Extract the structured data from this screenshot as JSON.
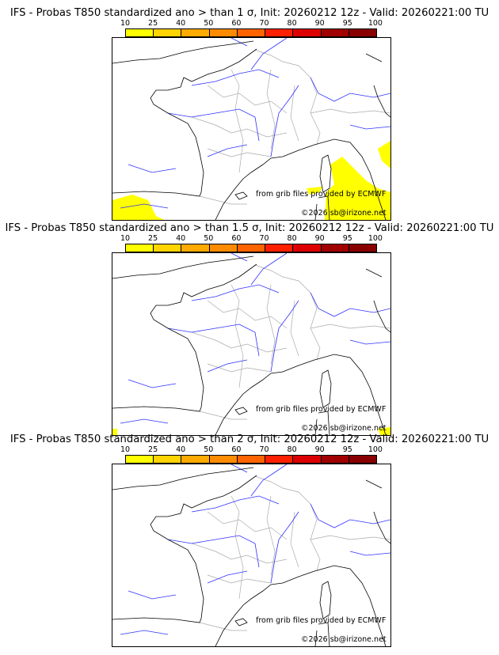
{
  "colorbar": {
    "ticks": [
      "10",
      "25",
      "40",
      "50",
      "60",
      "70",
      "80",
      "90",
      "95",
      "100"
    ],
    "colors": [
      "#ffff00",
      "#ffd400",
      "#ffaa00",
      "#ff8c00",
      "#ff6400",
      "#ff2000",
      "#dd0000",
      "#a00000",
      "#880000",
      "#600000"
    ]
  },
  "credits": {
    "source": "from grib files provided by ECMWF",
    "copyright": "©2026 sb@irizone.net"
  },
  "panels": [
    {
      "title": "IFS - Probas T850  standardized ano > than 1 σ, Init: 20260212 12z - Valid: 20260221:00 TU",
      "prob_area_color": "#ffff00"
    },
    {
      "title": "IFS - Probas T850  standardized ano > than 1.5 σ, Init: 20260212 12z - Valid: 20260221:00 TU",
      "prob_area_color": "#ffff00"
    },
    {
      "title": "IFS - Probas T850  standardized ano > than 2 σ, Init: 20260212 12z - Valid: 20260221:00 TU",
      "prob_area_color": "#ffff00"
    }
  ]
}
